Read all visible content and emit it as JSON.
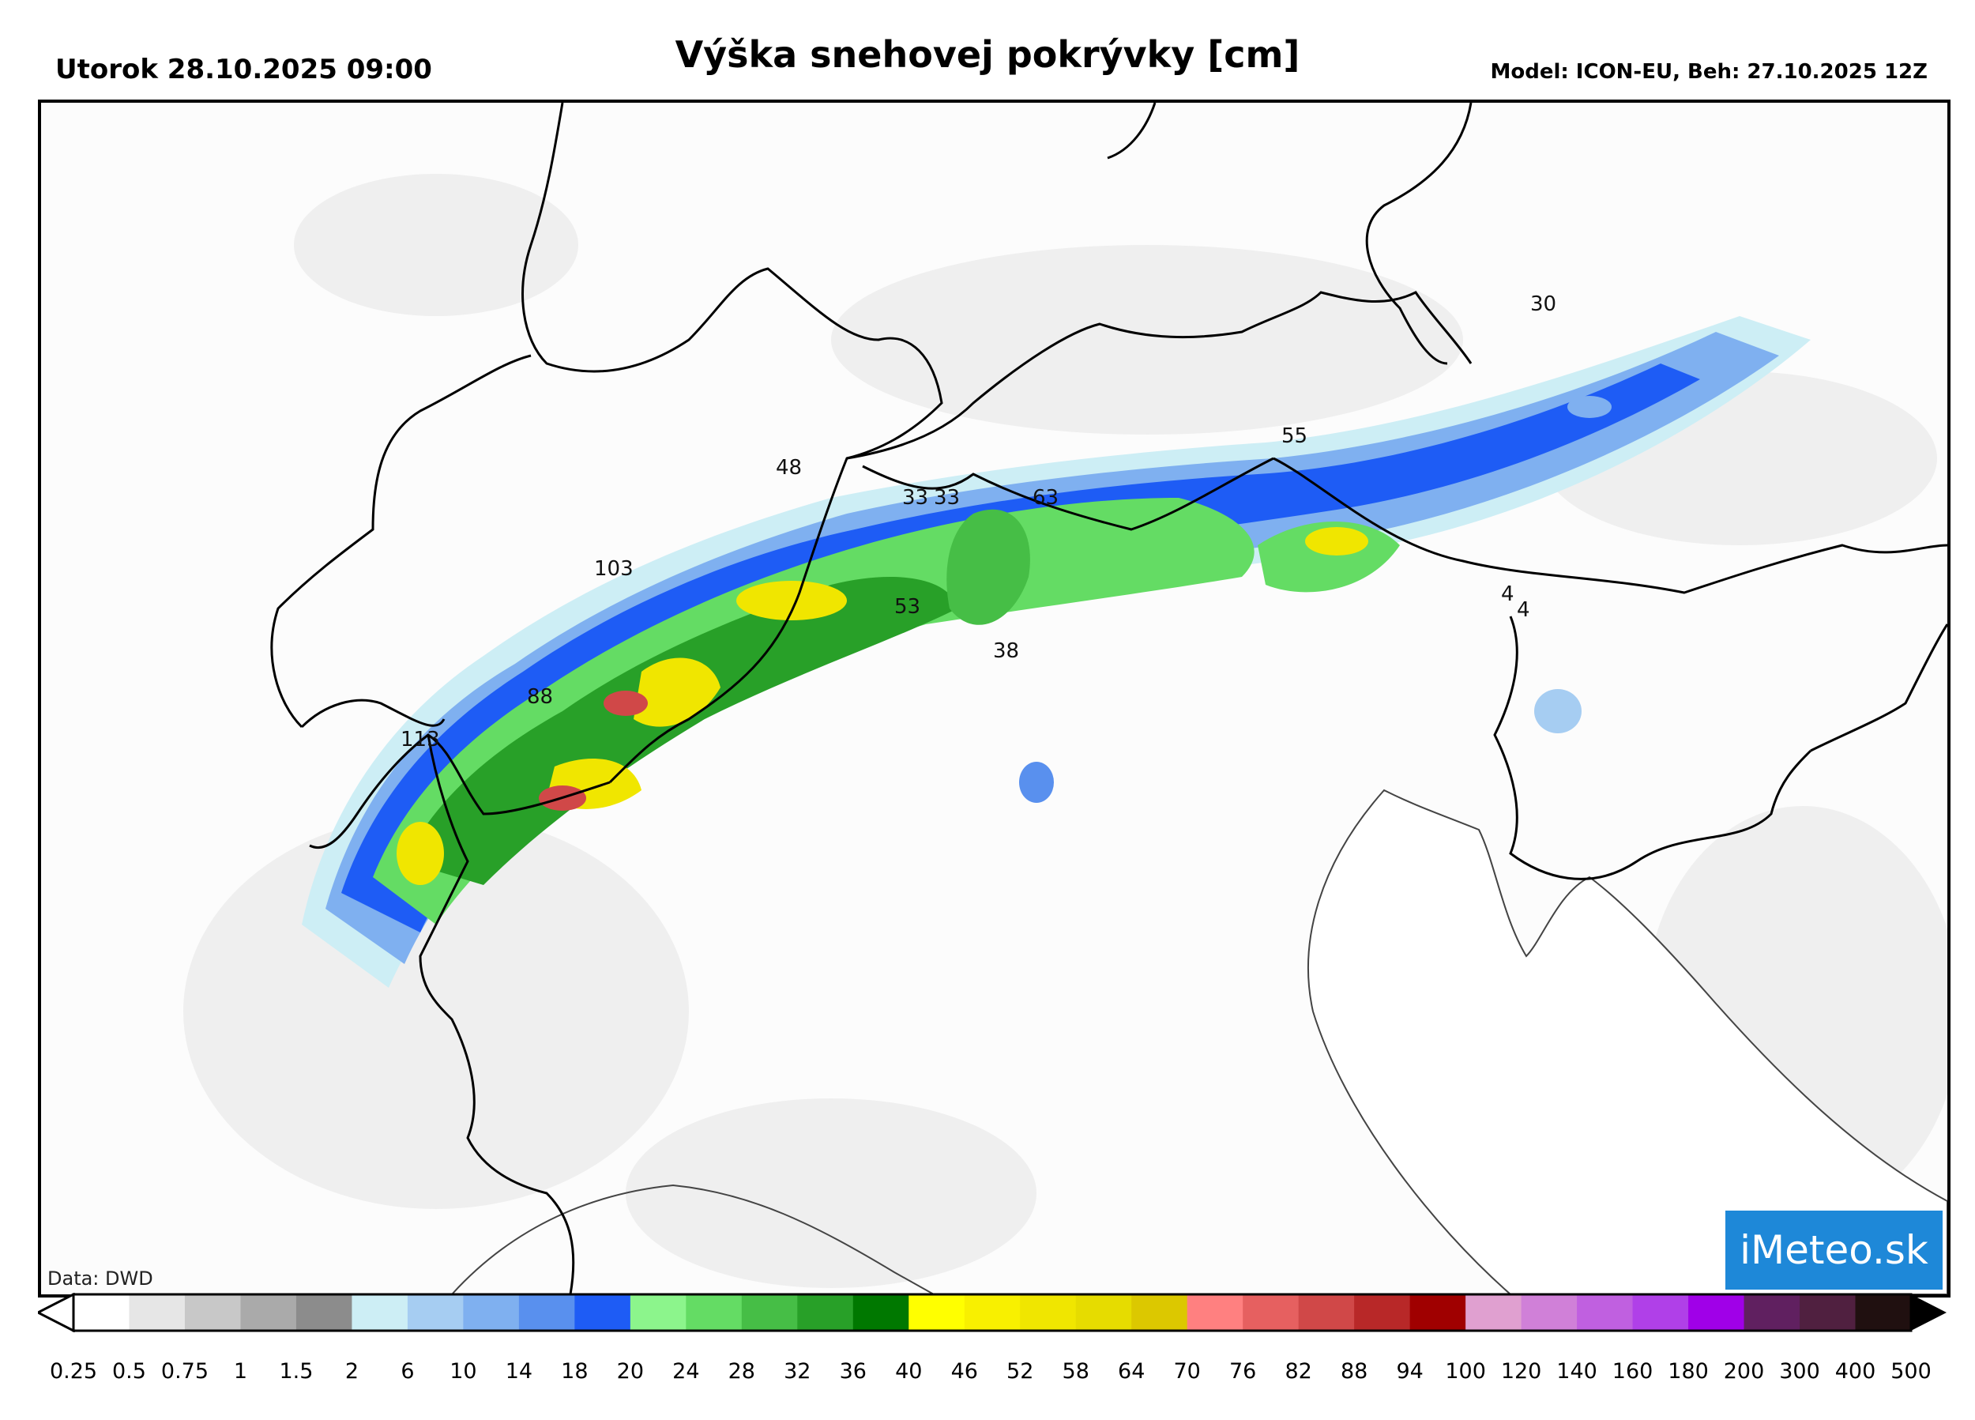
{
  "header": {
    "date": "Utorok 28.10.2025 09:00",
    "title": "Výška snehovej pokrývky [cm]",
    "model": "Model: ICON-EU, Beh: 27.10.2025 12Z"
  },
  "map": {
    "region": "Alps",
    "credit": "Data: DWD",
    "logo": "iMeteo.sk",
    "value_labels": [
      "103",
      "88",
      "113",
      "48",
      "33",
      "33",
      "63",
      "55",
      "30",
      "4",
      "4",
      "38",
      "53"
    ]
  },
  "legend": {
    "ticks": [
      "0.25",
      "0.5",
      "0.75",
      "1",
      "1.5",
      "2",
      "6",
      "10",
      "14",
      "18",
      "20",
      "24",
      "28",
      "32",
      "36",
      "40",
      "46",
      "52",
      "58",
      "64",
      "70",
      "76",
      "82",
      "88",
      "94",
      "100",
      "120",
      "140",
      "160",
      "180",
      "200",
      "300",
      "400",
      "500"
    ],
    "colors": [
      "#ffffff",
      "#e6e6e6",
      "#c8c8c8",
      "#aaaaaa",
      "#8c8c8c",
      "#cdeef5",
      "#a6cdf2",
      "#7fb0f0",
      "#5990ee",
      "#1e5cf5",
      "#8cf58c",
      "#64dc64",
      "#46be46",
      "#28a028",
      "#007800",
      "#ffff00",
      "#f8f000",
      "#f0e600",
      "#e6dc00",
      "#dcc800",
      "#ff8080",
      "#e66060",
      "#d04848",
      "#b82828",
      "#a00000",
      "#e0a0d0",
      "#d080d8",
      "#c060e0",
      "#b040e8",
      "#a000e8",
      "#602060",
      "#502040",
      "#201010"
    ],
    "arrow_left_color": "#ffffff",
    "arrow_right_color": "#000000"
  }
}
